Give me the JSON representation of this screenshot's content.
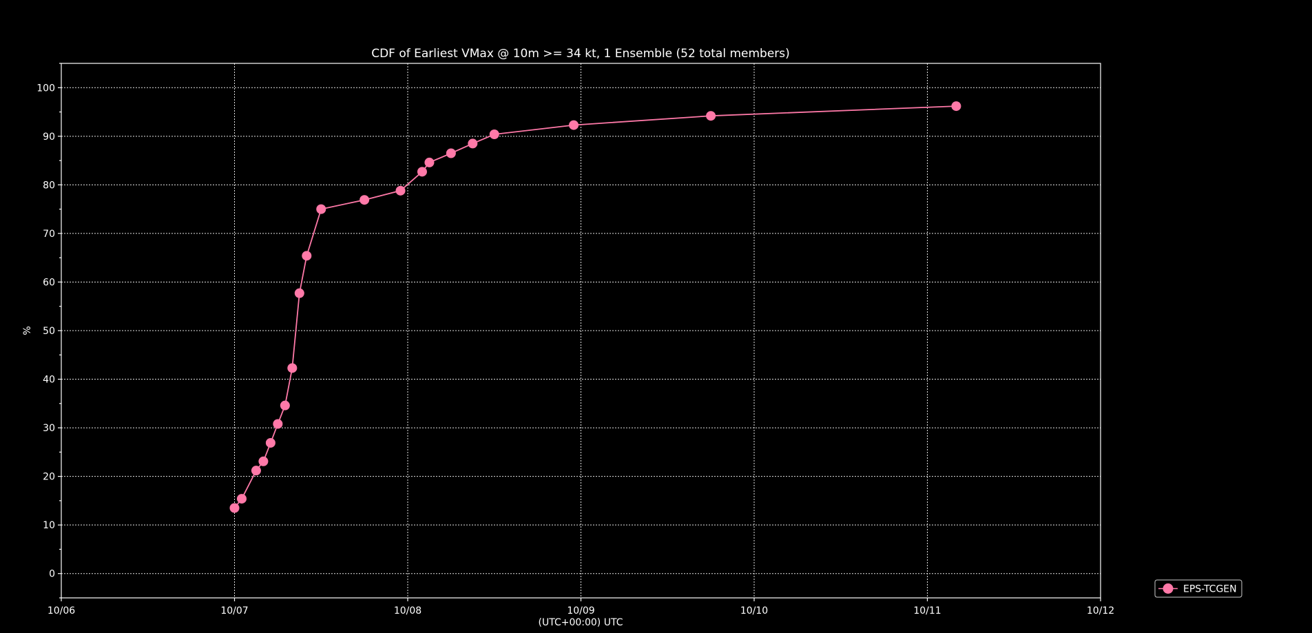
{
  "chart_data": {
    "type": "line",
    "title": "CDF of Earliest VMax @ 10m >= 34 kt, 1 Ensemble (52 total members)",
    "xlabel": "(UTC+00:00) UTC",
    "ylabel": "%",
    "xlim": [
      "10/06 00:00",
      "10/12 00:00"
    ],
    "ylim": [
      -5,
      105
    ],
    "grid": true,
    "legend_position": "outside-bottom-right",
    "x_ticks": [
      "10/06",
      "10/07",
      "10/08",
      "10/09",
      "10/10",
      "10/11",
      "10/12"
    ],
    "y_ticks": [
      0,
      10,
      20,
      30,
      40,
      50,
      60,
      70,
      80,
      90,
      100
    ],
    "series": [
      {
        "name": "EPS-TCGEN",
        "color": "#ff79a8",
        "marker": "circle",
        "x": [
          "10/07 00:00",
          "10/07 01:00",
          "10/07 03:00",
          "10/07 04:00",
          "10/07 05:00",
          "10/07 06:00",
          "10/07 07:00",
          "10/07 08:00",
          "10/07 09:00",
          "10/07 10:00",
          "10/07 12:00",
          "10/07 18:00",
          "10/07 23:00",
          "10/08 02:00",
          "10/08 03:00",
          "10/08 06:00",
          "10/08 09:00",
          "10/08 12:00",
          "10/08 23:00",
          "10/09 18:00",
          "10/11 04:00"
        ],
        "y": [
          13.5,
          15.4,
          21.2,
          23.1,
          26.9,
          30.8,
          34.6,
          42.3,
          57.7,
          65.4,
          75.0,
          76.9,
          78.8,
          82.7,
          84.6,
          86.5,
          88.5,
          90.4,
          92.3,
          94.2,
          96.2
        ]
      }
    ]
  }
}
